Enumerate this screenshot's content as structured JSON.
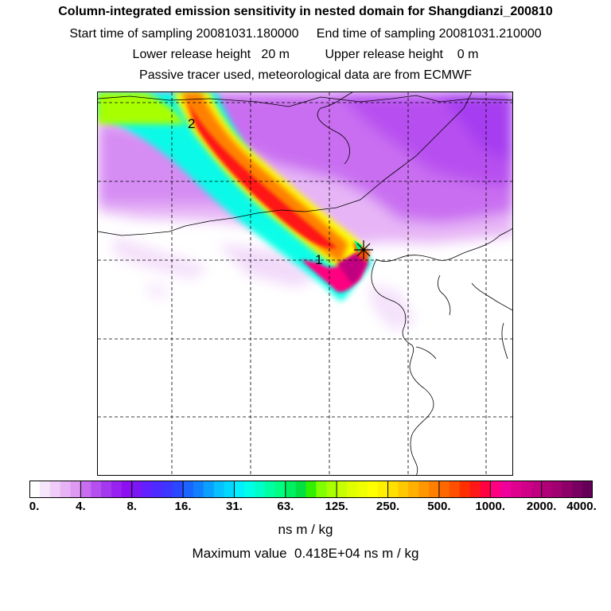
{
  "header": {
    "title": "Column-integrated emission sensitivity in nested domain for Shangdianzi_200810",
    "sampling_line": "Start time of sampling 20081031.180000     End time of sampling 20081031.210000",
    "release_line": "Lower release height   20 m          Upper release height    0 m",
    "tracer_line": "Passive tracer used, meteorological data are from ECMWF"
  },
  "map": {
    "markers": [
      {
        "label": "1"
      },
      {
        "label": "2"
      }
    ],
    "station_marker": "x-cross-icon"
  },
  "colorbar": {
    "labels": [
      "0.",
      "4.",
      "8.",
      "16.",
      "31.",
      "63.",
      "125.",
      "250.",
      "500.",
      "1000.",
      "2000.",
      "4000."
    ],
    "colors": [
      "#ffffff",
      "#f6e6fb",
      "#efcdf8",
      "#e6b3f5",
      "#de99f2",
      "#c86cf0",
      "#b64ff0",
      "#a338ef",
      "#9822f0",
      "#8c10f0",
      "#7a18f5",
      "#6020ff",
      "#4d2aff",
      "#3c36ff",
      "#2a48ff",
      "#1a64ff",
      "#1080ff",
      "#0aa0ff",
      "#06c0ff",
      "#00d8ff",
      "#00f0ff",
      "#00ffe8",
      "#00ffc8",
      "#00ffa0",
      "#00ff80",
      "#00f060",
      "#00e040",
      "#30f000",
      "#80ff00",
      "#a8ff00",
      "#c8ff00",
      "#e0ff00",
      "#f0ff00",
      "#ffff00",
      "#fff000",
      "#ffe000",
      "#ffc800",
      "#ffb000",
      "#ff9800",
      "#ff8000",
      "#ff6800",
      "#ff5000",
      "#ff3000",
      "#ff1818",
      "#ff0040",
      "#ff0080",
      "#f0009a",
      "#e00090",
      "#d00088",
      "#c00080",
      "#b00078",
      "#a00070",
      "#8c0068",
      "#780060",
      "#640058"
    ],
    "units": "ns m / kg",
    "max_text": "Maximum value  0.418E+04 ns m / kg"
  }
}
